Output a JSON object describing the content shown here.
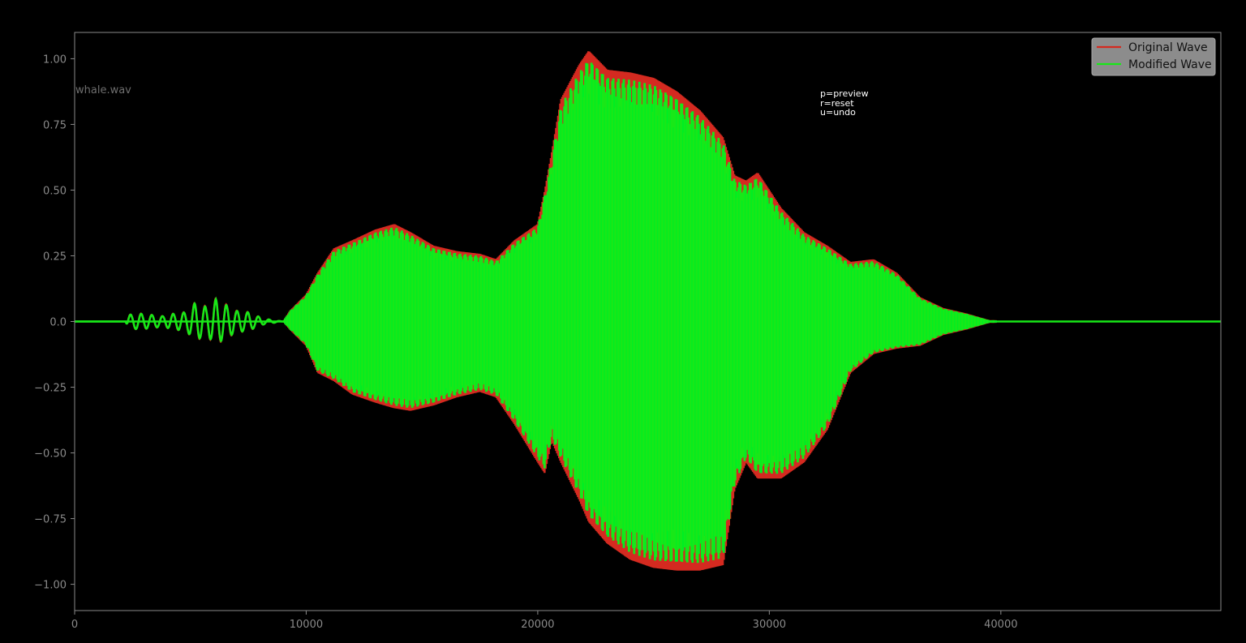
{
  "file_label": "whale.wav",
  "help": {
    "preview": "p=preview",
    "reset": "r=reset",
    "undo": "u=undo"
  },
  "colors": {
    "background": "#000000",
    "axis": "#8a8a8a",
    "original": "#d42a20",
    "modified": "#18e818"
  },
  "chart_data": {
    "type": "line",
    "xlim": [
      0,
      49500
    ],
    "ylim": [
      -1.1,
      1.1
    ],
    "x_ticks": [
      0,
      10000,
      20000,
      30000,
      40000
    ],
    "y_ticks": [
      1.0,
      0.75,
      0.5,
      0.25,
      0.0,
      -0.25,
      -0.5,
      -0.75,
      -1.0
    ],
    "x_tick_labels": [
      "0",
      "10000",
      "20000",
      "30000",
      "40000"
    ],
    "y_tick_labels": [
      "1.00",
      "0.75",
      "0.50",
      "0.25",
      "0.0",
      "−0.25",
      "−0.50",
      "−0.75",
      "−1.00"
    ],
    "legend_position": "top-right",
    "grid": false,
    "series": [
      {
        "name": "Original Wave",
        "color": "#d42a20"
      },
      {
        "name": "Modified Wave",
        "color": "#18e818"
      }
    ],
    "envelope": {
      "x": [
        0,
        9000,
        9300,
        10000,
        10500,
        11200,
        12000,
        13000,
        13800,
        14500,
        15500,
        16500,
        17500,
        18200,
        19000,
        20000,
        20300,
        20600,
        21000,
        21800,
        22200,
        23000,
        24000,
        25000,
        26000,
        27000,
        28000,
        28500,
        29000,
        29500,
        30500,
        31500,
        32500,
        33500,
        34500,
        35500,
        36500,
        37500,
        38500,
        39500,
        49500
      ],
      "upper": [
        0,
        0,
        0.04,
        0.1,
        0.18,
        0.27,
        0.3,
        0.34,
        0.36,
        0.33,
        0.28,
        0.26,
        0.25,
        0.23,
        0.3,
        0.36,
        0.48,
        0.62,
        0.82,
        0.95,
        1.0,
        0.93,
        0.92,
        0.9,
        0.85,
        0.78,
        0.68,
        0.54,
        0.52,
        0.55,
        0.42,
        0.33,
        0.28,
        0.22,
        0.23,
        0.18,
        0.09,
        0.05,
        0.03,
        0.005,
        0
      ],
      "lower": [
        0,
        0,
        -0.03,
        -0.09,
        -0.19,
        -0.22,
        -0.27,
        -0.3,
        -0.32,
        -0.33,
        -0.31,
        -0.28,
        -0.26,
        -0.28,
        -0.38,
        -0.52,
        -0.56,
        -0.44,
        -0.52,
        -0.66,
        -0.74,
        -0.82,
        -0.88,
        -0.91,
        -0.92,
        -0.92,
        -0.9,
        -0.62,
        -0.52,
        -0.58,
        -0.58,
        -0.52,
        -0.4,
        -0.19,
        -0.12,
        -0.1,
        -0.09,
        -0.05,
        -0.03,
        -0.005,
        0
      ]
    },
    "precursor": {
      "x": [
        0,
        2200,
        2300,
        2800,
        3300,
        3800,
        4300,
        4800,
        5200,
        5700,
        6100,
        6600,
        7000,
        7500,
        7900,
        8200,
        9000
      ],
      "amp": [
        0,
        0,
        0.025,
        0.03,
        0.025,
        0.02,
        0.03,
        0.035,
        0.07,
        0.055,
        0.085,
        0.06,
        0.04,
        0.035,
        0.02,
        0.01,
        0
      ]
    }
  }
}
